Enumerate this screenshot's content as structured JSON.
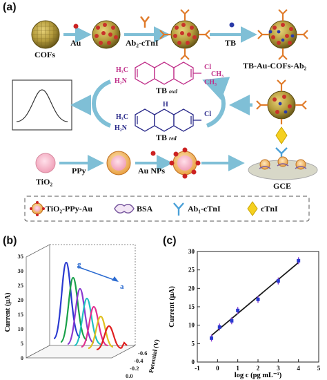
{
  "panel_labels": {
    "a": "(a)",
    "b": "(b)",
    "c": "(c)"
  },
  "scheme": {
    "row1": {
      "cofs": "COFs",
      "au": "Au",
      "ab2": "Ab₂-cTnI",
      "tb": "TB",
      "product": "TB-Au-COFs-Ab₂"
    },
    "tb_ox": {
      "h3c": "H₃C",
      "h2n": "H₂N",
      "cl": "Cl",
      "ch3_top": "CH₃",
      "ch3_bottom": "CH₃",
      "label": "TB",
      "sub": "oxd"
    },
    "tb_red": {
      "h": "H",
      "h3c": "H₃C",
      "h2n": "H₂N",
      "cl": "Cl",
      "label": "TB",
      "sub": "red"
    },
    "row3": {
      "tio2": "TiO₂",
      "ppy": "PPy",
      "au_nps": "Au NPs",
      "gce": "GCE"
    },
    "legend": {
      "item1": "TiO₂-PPy-Au",
      "item2": "BSA",
      "item3": "Ab₁-cTnI",
      "item4": "cTnI"
    }
  },
  "colors": {
    "arrow": "#7fbfd6",
    "magenta": "#c0308a",
    "navy": "#2a2a8a",
    "red_line": "#1a1a1a"
  },
  "plot_b": {
    "ylabel": "Current (μA)",
    "zlabel": "Potential (V)",
    "yticks": [
      "0",
      "5",
      "10",
      "15",
      "20",
      "25",
      "30",
      "35"
    ],
    "xticks": [
      "-0.6",
      "-0.4",
      "-0.2",
      "0.0"
    ],
    "label_g": "g",
    "label_a": "a"
  },
  "chart_data": {
    "type": "scatter",
    "title": "",
    "xlabel": "log c (pg mL⁻¹)",
    "ylabel": "Current (μA)",
    "xlim": [
      -1,
      5
    ],
    "ylim": [
      0,
      30
    ],
    "xticks": [
      "-1",
      "0",
      "1",
      "2",
      "3",
      "4",
      "5"
    ],
    "yticks": [
      "0",
      "5",
      "10",
      "15",
      "20",
      "25",
      "30"
    ],
    "x": [
      -0.3,
      0.1,
      0.7,
      1.0,
      2.0,
      3.0,
      4.0
    ],
    "y": [
      6.5,
      9.5,
      11.2,
      14.0,
      17.0,
      22.0,
      27.5
    ],
    "fit_line": {
      "x": [
        -0.3,
        4.0
      ],
      "y": [
        7.2,
        27.0
      ]
    }
  }
}
